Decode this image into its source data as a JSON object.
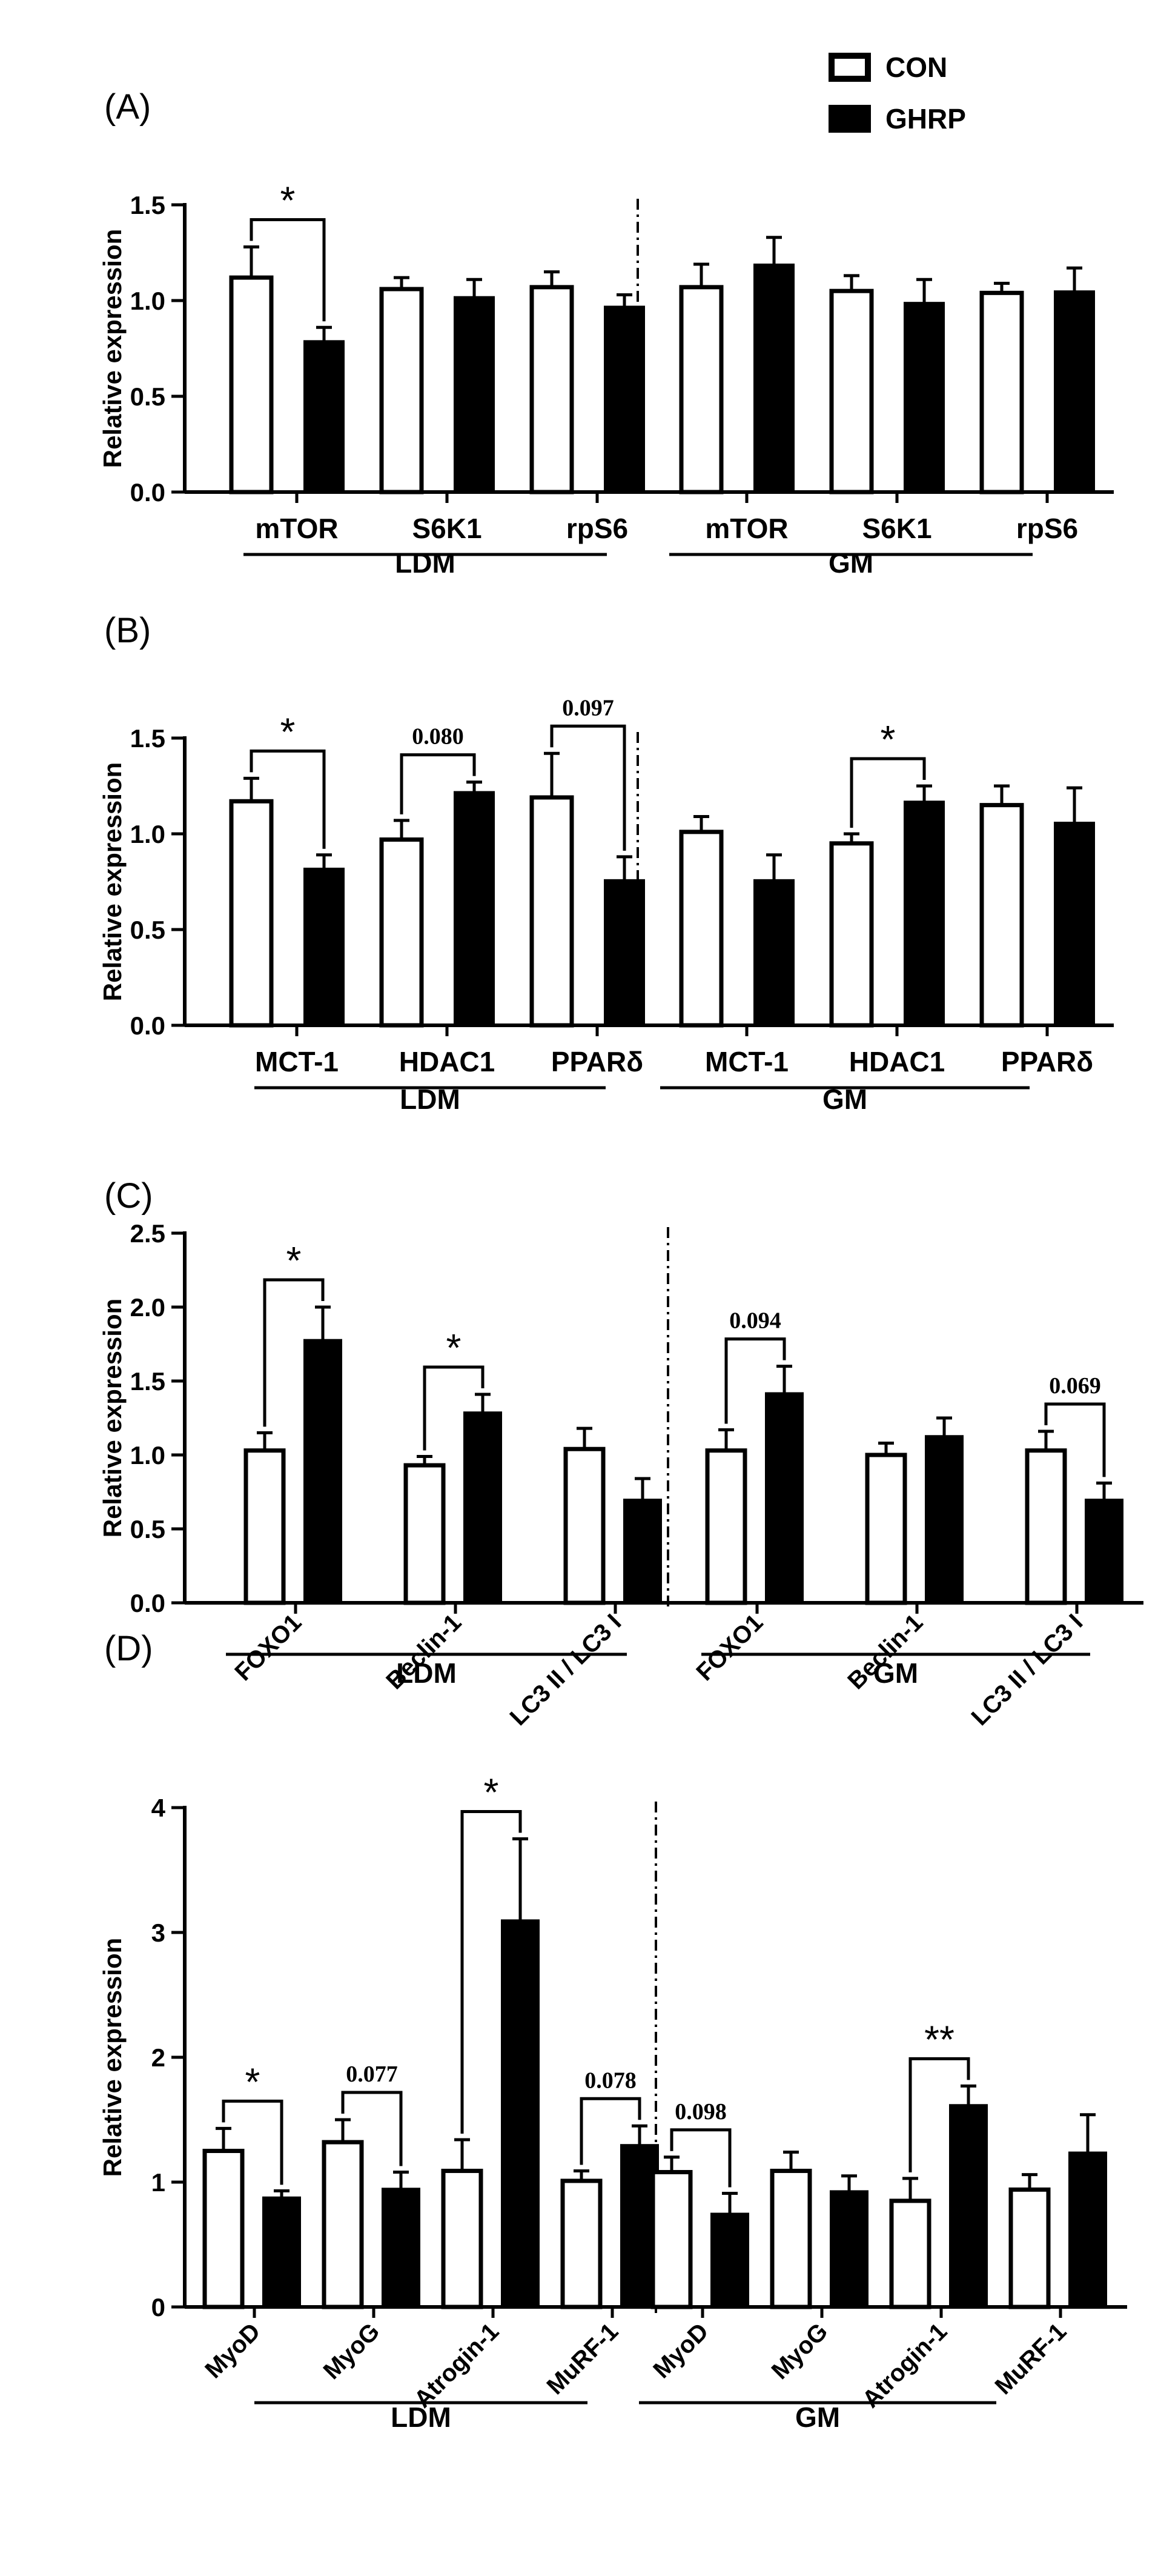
{
  "colors": {
    "con": "#ffffff",
    "ghrp": "#000000",
    "ink": "#000000"
  },
  "legend": {
    "con_label": "CON",
    "ghrp_label": "GHRP"
  },
  "axis_label": "Relative expression",
  "chart_data": [
    {
      "panel": "(A)",
      "type": "bar",
      "ylabel": "Relative expression",
      "ylim": [
        0,
        1.5
      ],
      "yticks": [
        "0.0",
        "0.5",
        "1.0",
        "1.5"
      ],
      "categories": [
        "mTOR",
        "S6K1",
        "rpS6",
        "mTOR",
        "S6K1",
        "rpS6"
      ],
      "groups": [
        "LDM",
        "GM"
      ],
      "series": [
        {
          "name": "CON",
          "values": [
            1.12,
            1.06,
            1.07,
            1.07,
            1.05,
            1.04
          ],
          "errors": [
            0.16,
            0.06,
            0.08,
            0.12,
            0.08,
            0.05
          ]
        },
        {
          "name": "GHRP",
          "values": [
            0.79,
            1.02,
            0.97,
            1.19,
            0.99,
            1.05
          ],
          "errors": [
            0.07,
            0.09,
            0.06,
            0.14,
            0.12,
            0.12
          ]
        }
      ],
      "annotations": [
        {
          "index": 0,
          "text": "*"
        }
      ]
    },
    {
      "panel": "(B)",
      "type": "bar",
      "ylabel": "Relative expression",
      "ylim": [
        0,
        1.5
      ],
      "yticks": [
        "0.0",
        "0.5",
        "1.0",
        "1.5"
      ],
      "categories": [
        "MCT-1",
        "HDAC1",
        "PPARδ",
        "MCT-1",
        "HDAC1",
        "PPARδ"
      ],
      "groups": [
        "LDM",
        "GM"
      ],
      "series": [
        {
          "name": "CON",
          "values": [
            1.17,
            0.97,
            1.19,
            1.01,
            0.95,
            1.15
          ],
          "errors": [
            0.12,
            0.1,
            0.23,
            0.08,
            0.05,
            0.1
          ]
        },
        {
          "name": "GHRP",
          "values": [
            0.82,
            1.22,
            0.76,
            0.76,
            1.17,
            1.06
          ],
          "errors": [
            0.07,
            0.05,
            0.12,
            0.13,
            0.08,
            0.18
          ]
        }
      ],
      "annotations": [
        {
          "index": 0,
          "text": "*"
        },
        {
          "index": 1,
          "text": "0.080"
        },
        {
          "index": 2,
          "text": "0.097"
        },
        {
          "index": 4,
          "text": "*"
        }
      ]
    },
    {
      "panel": "(C)",
      "type": "bar",
      "ylabel": "Relative expression",
      "ylim": [
        0,
        2.5
      ],
      "yticks": [
        "0.0",
        "0.5",
        "1.0",
        "1.5",
        "2.0",
        "2.5"
      ],
      "categories": [
        "FOXO1",
        "Beclin-1",
        "LC3 II / LC3 I",
        "FOXO1",
        "Beclin-1",
        "LC3 II / LC3 I"
      ],
      "groups": [
        "LDM",
        "GM"
      ],
      "series": [
        {
          "name": "CON",
          "values": [
            1.03,
            0.93,
            1.04,
            1.03,
            1.0,
            1.03
          ],
          "errors": [
            0.12,
            0.06,
            0.14,
            0.14,
            0.08,
            0.13
          ]
        },
        {
          "name": "GHRP",
          "values": [
            1.78,
            1.29,
            0.7,
            1.42,
            1.13,
            0.7
          ],
          "errors": [
            0.22,
            0.12,
            0.14,
            0.18,
            0.12,
            0.11
          ]
        }
      ],
      "annotations": [
        {
          "index": 0,
          "text": "*"
        },
        {
          "index": 1,
          "text": "*"
        },
        {
          "index": 3,
          "text": "0.094"
        },
        {
          "index": 5,
          "text": "0.069"
        }
      ]
    },
    {
      "panel": "(D)",
      "type": "bar",
      "ylabel": "Relative expression",
      "ylim": [
        0,
        4
      ],
      "yticks": [
        "0",
        "1",
        "2",
        "3",
        "4"
      ],
      "categories": [
        "MyoD",
        "MyoG",
        "Atrogin-1",
        "MuRF-1",
        "MyoD",
        "MyoG",
        "Atrogin-1",
        "MuRF-1"
      ],
      "groups": [
        "LDM",
        "GM"
      ],
      "series": [
        {
          "name": "CON",
          "values": [
            1.25,
            1.32,
            1.09,
            1.01,
            1.08,
            1.09,
            0.85,
            0.94
          ],
          "errors": [
            0.18,
            0.18,
            0.25,
            0.08,
            0.12,
            0.15,
            0.18,
            0.12
          ]
        },
        {
          "name": "GHRP",
          "values": [
            0.88,
            0.95,
            3.1,
            1.3,
            0.75,
            0.93,
            1.62,
            1.24
          ],
          "errors": [
            0.05,
            0.13,
            0.65,
            0.15,
            0.16,
            0.12,
            0.15,
            0.3
          ]
        }
      ],
      "annotations": [
        {
          "index": 0,
          "text": "*"
        },
        {
          "index": 1,
          "text": "0.077"
        },
        {
          "index": 2,
          "text": "*"
        },
        {
          "index": 3,
          "text": "0.078"
        },
        {
          "index": 4,
          "text": "0.098"
        },
        {
          "index": 6,
          "text": "**"
        }
      ]
    }
  ]
}
